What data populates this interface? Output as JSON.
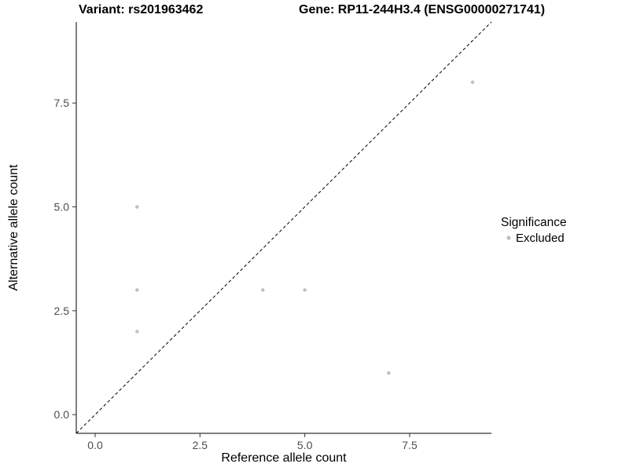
{
  "titles": {
    "variant": "Variant: rs201963462",
    "gene": "Gene: RP11-244H3.4 (ENSG00000271741)"
  },
  "legend": {
    "title": "Significance",
    "items": [
      {
        "label": "Excluded",
        "color": "#bebebe"
      }
    ]
  },
  "chart_data": {
    "type": "scatter",
    "title_left": "Variant: rs201963462",
    "title_right": "Gene: RP11-244H3.4 (ENSG00000271741)",
    "xlabel": "Reference allele count",
    "ylabel": "Alternative allele count",
    "xlim": [
      -0.45,
      9.45
    ],
    "ylim": [
      -0.45,
      9.45
    ],
    "xticks": [
      0.0,
      2.5,
      5.0,
      7.5
    ],
    "yticks": [
      0.0,
      2.5,
      5.0,
      7.5
    ],
    "points": [
      {
        "x": 1,
        "y": 5,
        "significance": "Excluded"
      },
      {
        "x": 1,
        "y": 3,
        "significance": "Excluded"
      },
      {
        "x": 1,
        "y": 2,
        "significance": "Excluded"
      },
      {
        "x": 4,
        "y": 3,
        "significance": "Excluded"
      },
      {
        "x": 5,
        "y": 3,
        "significance": "Excluded"
      },
      {
        "x": 7,
        "y": 1,
        "significance": "Excluded"
      },
      {
        "x": 9,
        "y": 8,
        "significance": "Excluded"
      }
    ],
    "point_color": "#bebebe",
    "identity_line": {
      "style": "dashed",
      "slope": 1,
      "intercept": 0
    },
    "grid": false,
    "legend_position": "right"
  }
}
